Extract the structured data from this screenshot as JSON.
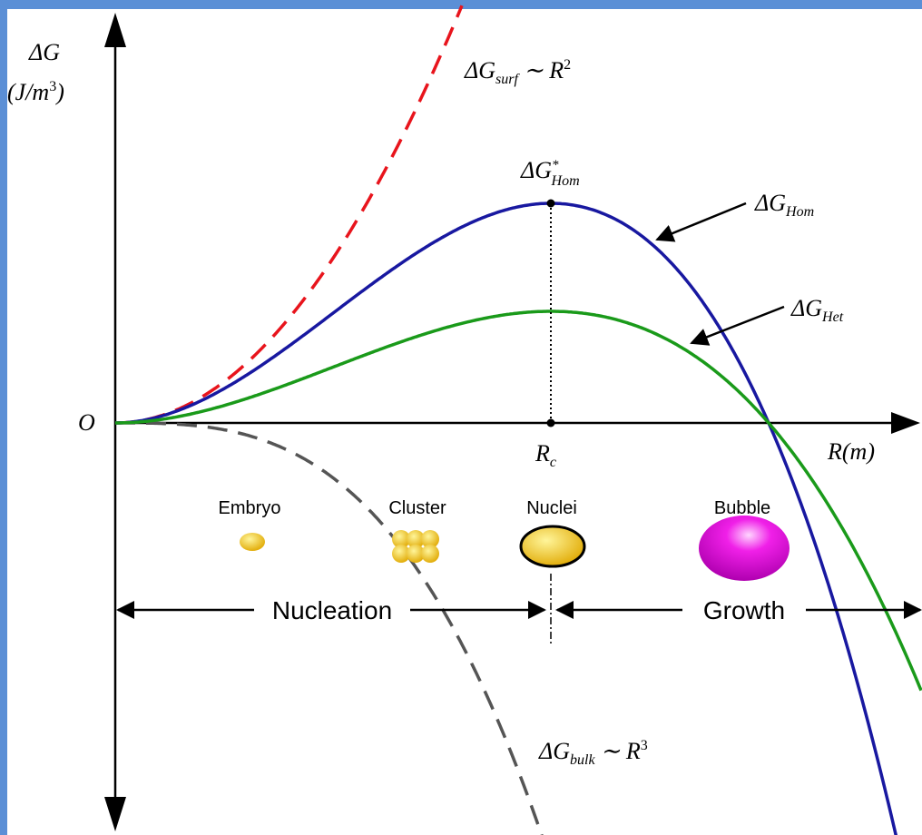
{
  "y_axis": {
    "symbol": "ΔG",
    "unit": "(J/m",
    "unit_sup": "3",
    "unit_end": ")"
  },
  "origin": "O",
  "x_axis": {
    "label": "R(m)",
    "critical": "R",
    "critical_sub": "c"
  },
  "curves": {
    "surface": {
      "base": "ΔG",
      "sub": "surf",
      "rest": "∼ R",
      "sup": "2"
    },
    "bulk": {
      "base": "ΔG",
      "sub": "bulk",
      "rest": "∼ R",
      "sup": "3"
    },
    "homogeneous": {
      "base": "ΔG",
      "sub": "Hom"
    },
    "heterogeneous": {
      "base": "ΔG",
      "sub": "Het"
    },
    "barrier": {
      "base": "ΔG",
      "sup": "*",
      "sub": "Hom"
    }
  },
  "stages": [
    "Embryo",
    "Cluster",
    "Nuclei",
    "Bubble"
  ],
  "phases": {
    "nucleation": "Nucleation",
    "growth": "Growth"
  }
}
